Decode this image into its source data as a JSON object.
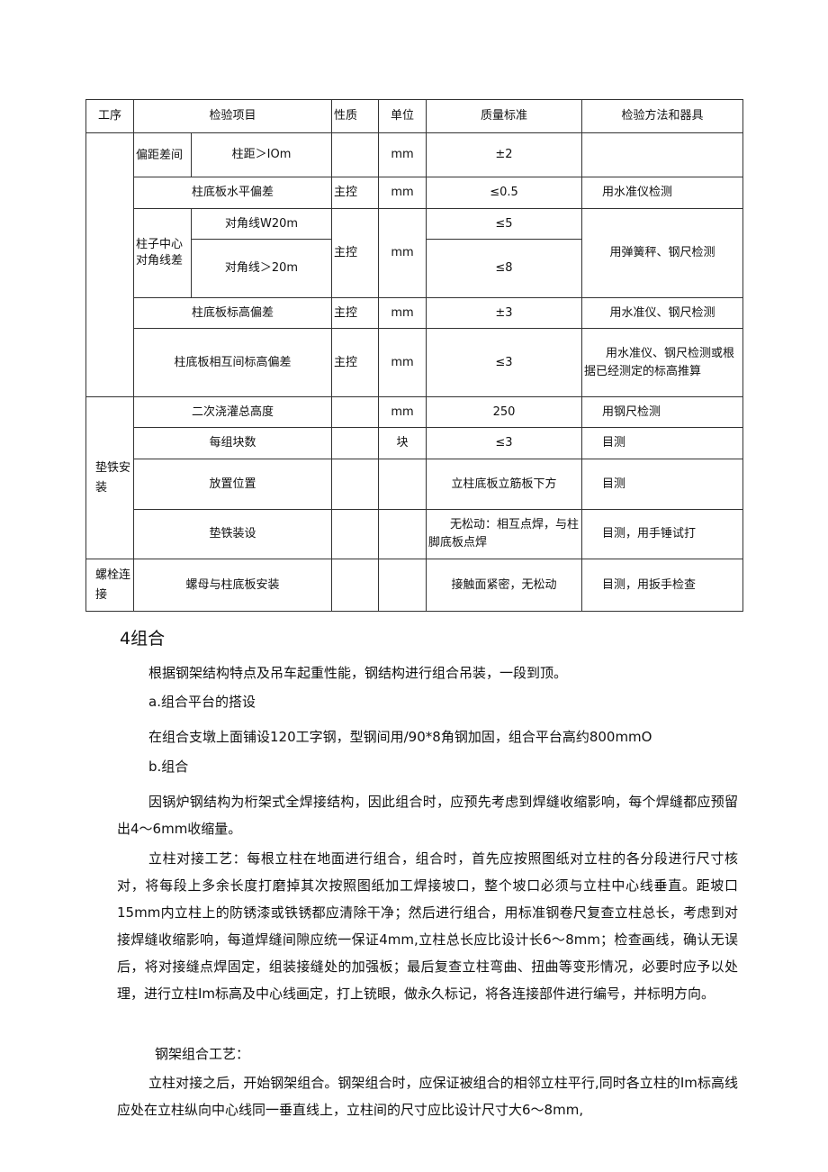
{
  "table": {
    "headers": [
      "工序",
      "检验项目",
      "性质",
      "单位",
      "质量标准",
      "检验方法和器具"
    ],
    "rows": {
      "r1": {
        "group": "偏距差间",
        "item": "柱距＞IOm",
        "nature": "",
        "unit": "mm",
        "standard": "±2",
        "method": ""
      },
      "r2": {
        "item": "柱底板水平偏差",
        "nature": "主控",
        "unit": "mm",
        "standard": "≤0.5",
        "method": "用水准仪检测"
      },
      "r3": {
        "group": "柱子中心对角线差",
        "item": "对角线W20m",
        "nature": "主控",
        "unit": "mm",
        "standard": "≤5",
        "method": "用弹簧秤、钢尺检测"
      },
      "r4": {
        "item": "对角线＞20m",
        "standard": "≤8"
      },
      "r5": {
        "item": "柱底板标高偏差",
        "nature": "主控",
        "unit": "mm",
        "standard": "±3",
        "method": "用水准仪、钢尺检测"
      },
      "r6": {
        "item": "柱底板相互间标高偏差",
        "nature": "主控",
        "unit": "mm",
        "standard": "≤3",
        "method": "用水准仪、钢尺检测或根据已经测定的标高推算"
      },
      "r7": {
        "process": "垫铁安装",
        "item": "二次浇灌总高度",
        "nature": "",
        "unit": "mm",
        "standard": "250",
        "method": "用钢尺检测"
      },
      "r8": {
        "item": "每组块数",
        "nature": "",
        "unit": "块",
        "standard": "≤3",
        "method": "目测"
      },
      "r9": {
        "item": "放置位置",
        "nature": "",
        "unit": "",
        "standard": "立柱底板立筋板下方",
        "method": "目测"
      },
      "r10": {
        "item": "垫铁装设",
        "nature": "",
        "unit": "",
        "standard": "无松动：相互点焊，与柱脚底板点焊",
        "method": "目测，用手锤试打"
      },
      "r11": {
        "process": "螺栓连接",
        "item": "螺母与柱底板安装",
        "nature": "",
        "unit": "",
        "standard": "接触面紧密，无松动",
        "method": "目测，用扳手检查"
      }
    }
  },
  "section": {
    "heading": "4组合",
    "p1": "根据钢架结构特点及吊车起重性能，钢结构进行组合吊装，一段到顶。",
    "p2": "a.组合平台的搭设",
    "p3": "在组合支墩上面铺设120工字钢，型钢间用/90*8角钢加固，组合平台高约800mmO",
    "p4": "b.组合",
    "p5": "因锅炉钢结构为桁架式全焊接结构，因此组合时，应预先考虑到焊缝收缩影响，每个焊缝都应预留出4～6mm收缩量。",
    "p6": "立柱对接工艺：每根立柱在地面进行组合，组合时，首先应按照图纸对立柱的各分段进行尺寸核对，将每段上多余长度打磨掉其次按照图纸加工焊接坡口，整个坡口必须与立柱中心线垂直。距坡口15mm内立柱上的防锈漆或铁锈都应清除干净；然后进行组合，用标准钢卷尺复查立柱总长，考虑到对接焊缝收缩影响，每道焊缝间隙应统一保证4mm,立柱总长应比设计长6～8mm；检查画线，确认无误后，将对接缝点焊固定，组装接缝处的加强板；最后复查立柱弯曲、扭曲等变形情况，必要时应予以处理，进行立柱Im标高及中心线画定，打上铳眼，做永久标记，将各连接部件进行编号，并标明方向。",
    "p7": "钢架组合工艺：",
    "p8": "立柱对接之后，开始钢架组合。钢架组合时，应保证被组合的相邻立柱平行,同时各立柱的Im标高线应处在立柱纵向中心线同一垂直线上，立柱间的尺寸应比设计尺寸大6～8mm,"
  }
}
